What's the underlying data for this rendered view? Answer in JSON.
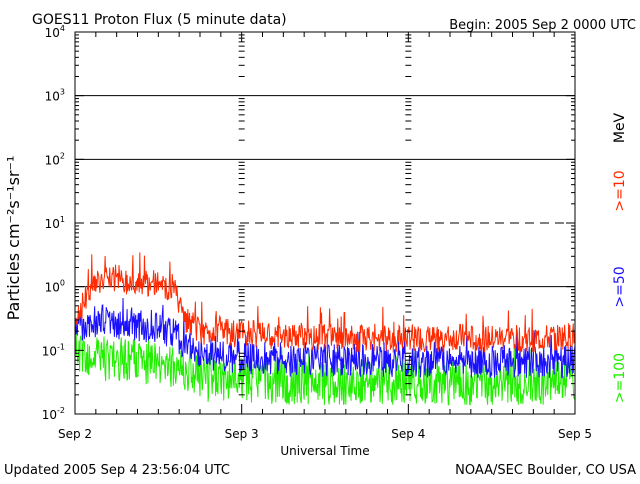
{
  "chart_data": {
    "type": "line",
    "title": "GOES11 Proton Flux (5 minute data)",
    "begin": "Begin: 2005 Sep 2 0000 UTC",
    "xlabel": "Universal Time",
    "ylabel": "Particles cm⁻²s⁻¹sr⁻¹",
    "yscale": "log",
    "ylim": [
      0.01,
      10000
    ],
    "xlim": [
      0,
      3
    ],
    "x_unit": "days since 2005 Sep 2 0000 UTC",
    "y_ticks": [
      {
        "value": 0.01,
        "base": "10",
        "exp": "-2"
      },
      {
        "value": 0.1,
        "base": "10",
        "exp": "-1"
      },
      {
        "value": 1,
        "base": "10",
        "exp": "0"
      },
      {
        "value": 10,
        "base": "10",
        "exp": "1"
      },
      {
        "value": 100,
        "base": "10",
        "exp": "2"
      },
      {
        "value": 1000,
        "base": "10",
        "exp": "3"
      },
      {
        "value": 10000,
        "base": "10",
        "exp": "4"
      }
    ],
    "x_ticks": [
      {
        "value": 0,
        "label": "Sep 2"
      },
      {
        "value": 1,
        "label": "Sep 3"
      },
      {
        "value": 2,
        "label": "Sep 4"
      },
      {
        "value": 3,
        "label": "Sep 5"
      }
    ],
    "threshold_lines": [
      {
        "value": 10,
        "style": "dashed"
      },
      {
        "value": 1,
        "style": "solid"
      },
      {
        "value": 100,
        "style": "solid"
      },
      {
        "value": 1000,
        "style": "solid"
      }
    ],
    "unit_label": "MeV",
    "series": [
      {
        "name": ">=10",
        "color": "#ff2a00",
        "points": [
          [
            0.0,
            0.3
          ],
          [
            0.05,
            0.55
          ],
          [
            0.1,
            1.1
          ],
          [
            0.15,
            1.3
          ],
          [
            0.2,
            1.2
          ],
          [
            0.25,
            1.4
          ],
          [
            0.3,
            1.2
          ],
          [
            0.35,
            1.3
          ],
          [
            0.4,
            1.2
          ],
          [
            0.45,
            1.0
          ],
          [
            0.5,
            1.05
          ],
          [
            0.55,
            0.9
          ],
          [
            0.6,
            0.8
          ],
          [
            0.65,
            0.3
          ],
          [
            0.7,
            0.25
          ],
          [
            0.75,
            0.2
          ],
          [
            0.8,
            0.2
          ],
          [
            0.85,
            0.22
          ],
          [
            0.9,
            0.2
          ],
          [
            0.95,
            0.18
          ],
          [
            1.0,
            0.2
          ],
          [
            1.1,
            0.18
          ],
          [
            1.2,
            0.17
          ],
          [
            1.3,
            0.16
          ],
          [
            1.4,
            0.17
          ],
          [
            1.5,
            0.16
          ],
          [
            1.6,
            0.16
          ],
          [
            1.7,
            0.15
          ],
          [
            1.8,
            0.16
          ],
          [
            1.9,
            0.15
          ],
          [
            2.0,
            0.16
          ],
          [
            2.1,
            0.15
          ],
          [
            2.2,
            0.15
          ],
          [
            2.3,
            0.16
          ],
          [
            2.4,
            0.15
          ],
          [
            2.5,
            0.15
          ],
          [
            2.6,
            0.16
          ],
          [
            2.7,
            0.15
          ],
          [
            2.8,
            0.15
          ],
          [
            2.9,
            0.16
          ],
          [
            3.0,
            0.17
          ]
        ]
      },
      {
        "name": ">=50",
        "color": "#1a10ff",
        "points": [
          [
            0.0,
            0.22
          ],
          [
            0.05,
            0.25
          ],
          [
            0.1,
            0.3
          ],
          [
            0.15,
            0.28
          ],
          [
            0.2,
            0.3
          ],
          [
            0.25,
            0.27
          ],
          [
            0.3,
            0.28
          ],
          [
            0.35,
            0.26
          ],
          [
            0.4,
            0.25
          ],
          [
            0.45,
            0.24
          ],
          [
            0.5,
            0.23
          ],
          [
            0.55,
            0.2
          ],
          [
            0.6,
            0.18
          ],
          [
            0.65,
            0.12
          ],
          [
            0.7,
            0.1
          ],
          [
            0.75,
            0.09
          ],
          [
            0.8,
            0.09
          ],
          [
            0.85,
            0.085
          ],
          [
            0.9,
            0.08
          ],
          [
            0.95,
            0.08
          ],
          [
            1.0,
            0.08
          ],
          [
            1.1,
            0.075
          ],
          [
            1.2,
            0.075
          ],
          [
            1.3,
            0.07
          ],
          [
            1.4,
            0.072
          ],
          [
            1.5,
            0.07
          ],
          [
            1.6,
            0.07
          ],
          [
            1.7,
            0.068
          ],
          [
            1.8,
            0.07
          ],
          [
            1.9,
            0.068
          ],
          [
            2.0,
            0.068
          ],
          [
            2.1,
            0.066
          ],
          [
            2.2,
            0.067
          ],
          [
            2.3,
            0.066
          ],
          [
            2.4,
            0.066
          ],
          [
            2.5,
            0.065
          ],
          [
            2.6,
            0.066
          ],
          [
            2.7,
            0.065
          ],
          [
            2.8,
            0.066
          ],
          [
            2.9,
            0.067
          ],
          [
            3.0,
            0.068
          ]
        ]
      },
      {
        "name": ">=100",
        "color": "#22ee00",
        "points": [
          [
            0.0,
            0.1
          ],
          [
            0.05,
            0.08
          ],
          [
            0.1,
            0.07
          ],
          [
            0.15,
            0.08
          ],
          [
            0.2,
            0.07
          ],
          [
            0.25,
            0.08
          ],
          [
            0.3,
            0.07
          ],
          [
            0.35,
            0.07
          ],
          [
            0.4,
            0.06
          ],
          [
            0.45,
            0.07
          ],
          [
            0.5,
            0.06
          ],
          [
            0.55,
            0.06
          ],
          [
            0.6,
            0.06
          ],
          [
            0.65,
            0.045
          ],
          [
            0.7,
            0.04
          ],
          [
            0.75,
            0.04
          ],
          [
            0.8,
            0.035
          ],
          [
            0.85,
            0.035
          ],
          [
            0.9,
            0.035
          ],
          [
            0.95,
            0.035
          ],
          [
            1.0,
            0.035
          ],
          [
            1.1,
            0.033
          ],
          [
            1.2,
            0.032
          ],
          [
            1.3,
            0.031
          ],
          [
            1.4,
            0.032
          ],
          [
            1.5,
            0.031
          ],
          [
            1.6,
            0.03
          ],
          [
            1.7,
            0.03
          ],
          [
            1.8,
            0.031
          ],
          [
            1.9,
            0.03
          ],
          [
            2.0,
            0.03
          ],
          [
            2.1,
            0.03
          ],
          [
            2.2,
            0.031
          ],
          [
            2.3,
            0.03
          ],
          [
            2.4,
            0.03
          ],
          [
            2.5,
            0.03
          ],
          [
            2.6,
            0.031
          ],
          [
            2.7,
            0.03
          ],
          [
            2.8,
            0.03
          ],
          [
            2.9,
            0.031
          ],
          [
            3.0,
            0.032
          ]
        ]
      }
    ]
  },
  "footer": {
    "updated": "Updated 2005 Sep  4 23:56:04 UTC",
    "source": "NOAA/SEC Boulder, CO USA"
  }
}
